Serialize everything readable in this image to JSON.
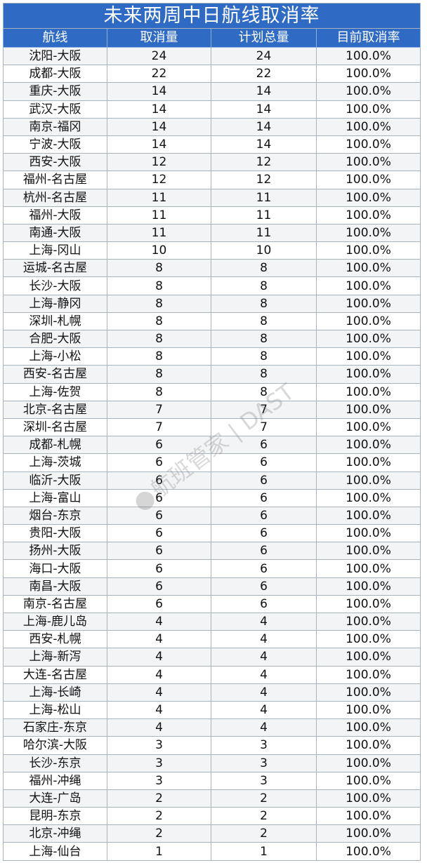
{
  "title": "未来两周中日航线取消率",
  "headers": [
    "航线",
    "取消量",
    "计划总量",
    "目前取消率"
  ],
  "rows": [
    [
      "沈阳-大阪",
      "24",
      "24",
      "100.0%"
    ],
    [
      "成都-大阪",
      "22",
      "22",
      "100.0%"
    ],
    [
      "重庆-大阪",
      "14",
      "14",
      "100.0%"
    ],
    [
      "武汉-大阪",
      "14",
      "14",
      "100.0%"
    ],
    [
      "南京-福冈",
      "14",
      "14",
      "100.0%"
    ],
    [
      "宁波-大阪",
      "14",
      "14",
      "100.0%"
    ],
    [
      "西安-大阪",
      "12",
      "12",
      "100.0%"
    ],
    [
      "福州-名古屋",
      "12",
      "12",
      "100.0%"
    ],
    [
      "杭州-名古屋",
      "11",
      "11",
      "100.0%"
    ],
    [
      "福州-大阪",
      "11",
      "11",
      "100.0%"
    ],
    [
      "南通-大阪",
      "11",
      "11",
      "100.0%"
    ],
    [
      "上海-冈山",
      "10",
      "10",
      "100.0%"
    ],
    [
      "运城-名古屋",
      "8",
      "8",
      "100.0%"
    ],
    [
      "长沙-大阪",
      "8",
      "8",
      "100.0%"
    ],
    [
      "上海-静冈",
      "8",
      "8",
      "100.0%"
    ],
    [
      "深圳-札幌",
      "8",
      "8",
      "100.0%"
    ],
    [
      "合肥-大阪",
      "8",
      "8",
      "100.0%"
    ],
    [
      "上海-小松",
      "8",
      "8",
      "100.0%"
    ],
    [
      "西安-名古屋",
      "8",
      "8",
      "100.0%"
    ],
    [
      "上海-佐贺",
      "8",
      "8",
      "100.0%"
    ],
    [
      "北京-名古屋",
      "7",
      "7",
      "100.0%"
    ],
    [
      "深圳-名古屋",
      "7",
      "7",
      "100.0%"
    ],
    [
      "成都-札幌",
      "6",
      "6",
      "100.0%"
    ],
    [
      "上海-茨城",
      "6",
      "6",
      "100.0%"
    ],
    [
      "临沂-大阪",
      "6",
      "6",
      "100.0%"
    ],
    [
      "上海-富山",
      "6",
      "6",
      "100.0%"
    ],
    [
      "烟台-东京",
      "6",
      "6",
      "100.0%"
    ],
    [
      "贵阳-大阪",
      "6",
      "6",
      "100.0%"
    ],
    [
      "扬州-大阪",
      "6",
      "6",
      "100.0%"
    ],
    [
      "海口-大阪",
      "6",
      "6",
      "100.0%"
    ],
    [
      "南昌-大阪",
      "6",
      "6",
      "100.0%"
    ],
    [
      "南京-名古屋",
      "6",
      "6",
      "100.0%"
    ],
    [
      "上海-鹿儿岛",
      "4",
      "4",
      "100.0%"
    ],
    [
      "西安-札幌",
      "4",
      "4",
      "100.0%"
    ],
    [
      "上海-新泻",
      "4",
      "4",
      "100.0%"
    ],
    [
      "大连-名古屋",
      "4",
      "4",
      "100.0%"
    ],
    [
      "上海-长崎",
      "4",
      "4",
      "100.0%"
    ],
    [
      "上海-松山",
      "4",
      "4",
      "100.0%"
    ],
    [
      "石家庄-东京",
      "4",
      "4",
      "100.0%"
    ],
    [
      "哈尔滨-大阪",
      "3",
      "3",
      "100.0%"
    ],
    [
      "长沙-东京",
      "3",
      "3",
      "100.0%"
    ],
    [
      "福州-冲绳",
      "3",
      "3",
      "100.0%"
    ],
    [
      "大连-广岛",
      "2",
      "2",
      "100.0%"
    ],
    [
      "昆明-东京",
      "2",
      "2",
      "100.0%"
    ],
    [
      "北京-冲绳",
      "2",
      "2",
      "100.0%"
    ],
    [
      "上海-仙台",
      "1",
      "1",
      "100.0%"
    ]
  ],
  "watermark": "航班管家 | DAST",
  "colors": {
    "header_bg": "#2f6bc4",
    "header_text": "#ffffff",
    "border": "#a9b3bd"
  }
}
